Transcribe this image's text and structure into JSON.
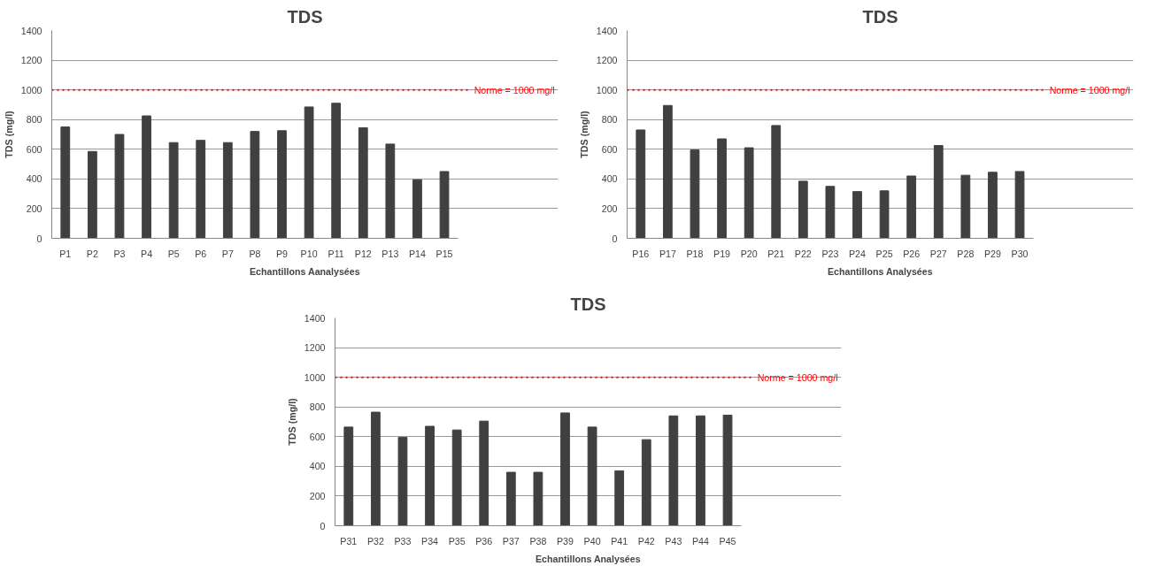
{
  "chart_data": [
    {
      "type": "bar",
      "title": "TDS",
      "xlabel": "Echantillons Aanalysées",
      "ylabel": "TDS (mg/l)",
      "categories": [
        "P1",
        "P2",
        "P3",
        "P4",
        "P5",
        "P6",
        "P7",
        "P8",
        "P9",
        "P10",
        "P11",
        "P12",
        "P13",
        "P14",
        "P15"
      ],
      "values": [
        750,
        585,
        700,
        825,
        645,
        660,
        645,
        720,
        725,
        885,
        910,
        745,
        635,
        395,
        450
      ],
      "color": "#404040",
      "ylim": [
        0,
        1400
      ],
      "yticks": [
        0,
        200,
        400,
        600,
        800,
        1000,
        1200,
        1400
      ],
      "grid": "y",
      "ref_lines": [
        {
          "axis": "y",
          "value": 1000,
          "label": "Norme = 1000 mg/l",
          "color": "#ff0000",
          "line_style": "dotted"
        }
      ]
    },
    {
      "type": "bar",
      "title": "TDS",
      "xlabel": "Echantillons Analysées",
      "ylabel": "TDS (mg/l)",
      "categories": [
        "P16",
        "P17",
        "P18",
        "P19",
        "P20",
        "P21",
        "P22",
        "P23",
        "P24",
        "P25",
        "P26",
        "P27",
        "P28",
        "P29",
        "P30"
      ],
      "values": [
        730,
        895,
        595,
        670,
        610,
        760,
        385,
        350,
        315,
        320,
        420,
        625,
        425,
        445,
        450
      ],
      "color": "#404040",
      "ylim": [
        0,
        1400
      ],
      "yticks": [
        0,
        200,
        400,
        600,
        800,
        1000,
        1200,
        1400
      ],
      "grid": "y",
      "ref_lines": [
        {
          "axis": "y",
          "value": 1000,
          "label": "Norme = 1000 mg/l",
          "color": "#ff0000",
          "line_style": "dotted"
        }
      ]
    },
    {
      "type": "bar",
      "title": "TDS",
      "xlabel": "Echantillons Analysées",
      "ylabel": "TDS (mg/l)",
      "categories": [
        "P31",
        "P32",
        "P33",
        "P34",
        "P35",
        "P36",
        "P37",
        "P38",
        "P39",
        "P40",
        "P41",
        "P42",
        "P43",
        "P44",
        "P45"
      ],
      "values": [
        665,
        765,
        595,
        670,
        645,
        705,
        360,
        360,
        760,
        665,
        370,
        580,
        740,
        740,
        745
      ],
      "color": "#404040",
      "ylim": [
        0,
        1400
      ],
      "yticks": [
        0,
        200,
        400,
        600,
        800,
        1000,
        1200,
        1400
      ],
      "grid": "y",
      "ref_lines": [
        {
          "axis": "y",
          "value": 1000,
          "label": "Norme = 1000 mg/l",
          "color": "#ff0000",
          "line_style": "dotted"
        }
      ]
    }
  ]
}
